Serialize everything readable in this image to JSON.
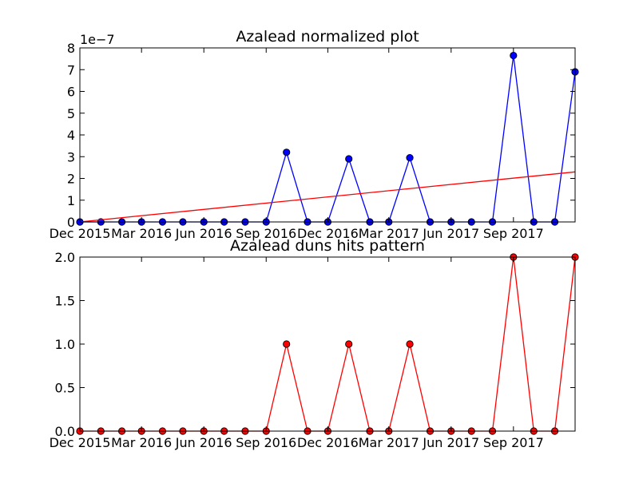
{
  "chart_data": [
    {
      "type": "line",
      "title": "Azalead normalized plot",
      "offset_label": "1e−7",
      "x": [
        "2015-12-01",
        "2016-01-01",
        "2016-02-01",
        "2016-03-01",
        "2016-04-01",
        "2016-05-01",
        "2016-06-01",
        "2016-07-01",
        "2016-08-01",
        "2016-09-01",
        "2016-10-01",
        "2016-11-01",
        "2016-12-01",
        "2017-01-01",
        "2017-02-01",
        "2017-03-01",
        "2017-04-01",
        "2017-05-01",
        "2017-06-01",
        "2017-07-01",
        "2017-08-01",
        "2017-09-01",
        "2017-10-01",
        "2017-11-01",
        "2017-12-01"
      ],
      "xlim": [
        "2015-12-01",
        "2017-12-01"
      ],
      "x_ticks": [
        "2015-12-01",
        "2016-03-01",
        "2016-06-01",
        "2016-09-01",
        "2016-12-01",
        "2017-03-01",
        "2017-06-01",
        "2017-09-01"
      ],
      "x_tick_labels": [
        "Dec 2015",
        "Mar 2016",
        "Jun 2016",
        "Sep 2016",
        "Dec 2016",
        "Mar 2017",
        "Jun 2017",
        "Sep 2017"
      ],
      "ylim": [
        0,
        8e-07
      ],
      "y_ticks": [
        0,
        1e-07,
        2e-07,
        3e-07,
        4e-07,
        5e-07,
        6e-07,
        7e-07,
        8e-07
      ],
      "y_tick_labels": [
        "0",
        "1",
        "2",
        "3",
        "4",
        "5",
        "6",
        "7",
        "8"
      ],
      "series": [
        {
          "kind": "line-markers",
          "color": "#0000ff",
          "marker_color": "#0000ff",
          "values": [
            0,
            0,
            0,
            0,
            0,
            0,
            0,
            0,
            0,
            0,
            3.2e-07,
            0,
            0,
            2.9e-07,
            0,
            0,
            2.95e-07,
            0,
            0,
            0,
            0,
            7.65e-07,
            0,
            0,
            6.9e-07
          ]
        },
        {
          "kind": "trend",
          "color": "#ff0000",
          "x": [
            "2015-12-01",
            "2017-12-01"
          ],
          "values": [
            0,
            2.3e-07
          ]
        }
      ],
      "grid": false
    },
    {
      "type": "line",
      "title": "Azalead duns hits pattern",
      "x": [
        "2015-12-01",
        "2016-01-01",
        "2016-02-01",
        "2016-03-01",
        "2016-04-01",
        "2016-05-01",
        "2016-06-01",
        "2016-07-01",
        "2016-08-01",
        "2016-09-01",
        "2016-10-01",
        "2016-11-01",
        "2016-12-01",
        "2017-01-01",
        "2017-02-01",
        "2017-03-01",
        "2017-04-01",
        "2017-05-01",
        "2017-06-01",
        "2017-07-01",
        "2017-08-01",
        "2017-09-01",
        "2017-10-01",
        "2017-11-01",
        "2017-12-01"
      ],
      "xlim": [
        "2015-12-01",
        "2017-12-01"
      ],
      "x_ticks": [
        "2015-12-01",
        "2016-03-01",
        "2016-06-01",
        "2016-09-01",
        "2016-12-01",
        "2017-03-01",
        "2017-06-01",
        "2017-09-01"
      ],
      "x_tick_labels": [
        "Dec 2015",
        "Mar 2016",
        "Jun 2016",
        "Sep 2016",
        "Dec 2016",
        "Mar 2017",
        "Jun 2017",
        "Sep 2017"
      ],
      "ylim": [
        0,
        2
      ],
      "y_ticks": [
        0,
        0.5,
        1,
        1.5,
        2
      ],
      "y_tick_labels": [
        "0.0",
        "0.5",
        "1.0",
        "1.5",
        "2.0"
      ],
      "series": [
        {
          "kind": "line-markers",
          "color": "#ff0000",
          "marker_color": "#ff0000",
          "values": [
            0,
            0,
            0,
            0,
            0,
            0,
            0,
            0,
            0,
            0,
            1,
            0,
            0,
            1,
            0,
            0,
            1,
            0,
            0,
            0,
            0,
            2,
            0,
            0,
            2
          ]
        }
      ],
      "grid": false
    }
  ]
}
